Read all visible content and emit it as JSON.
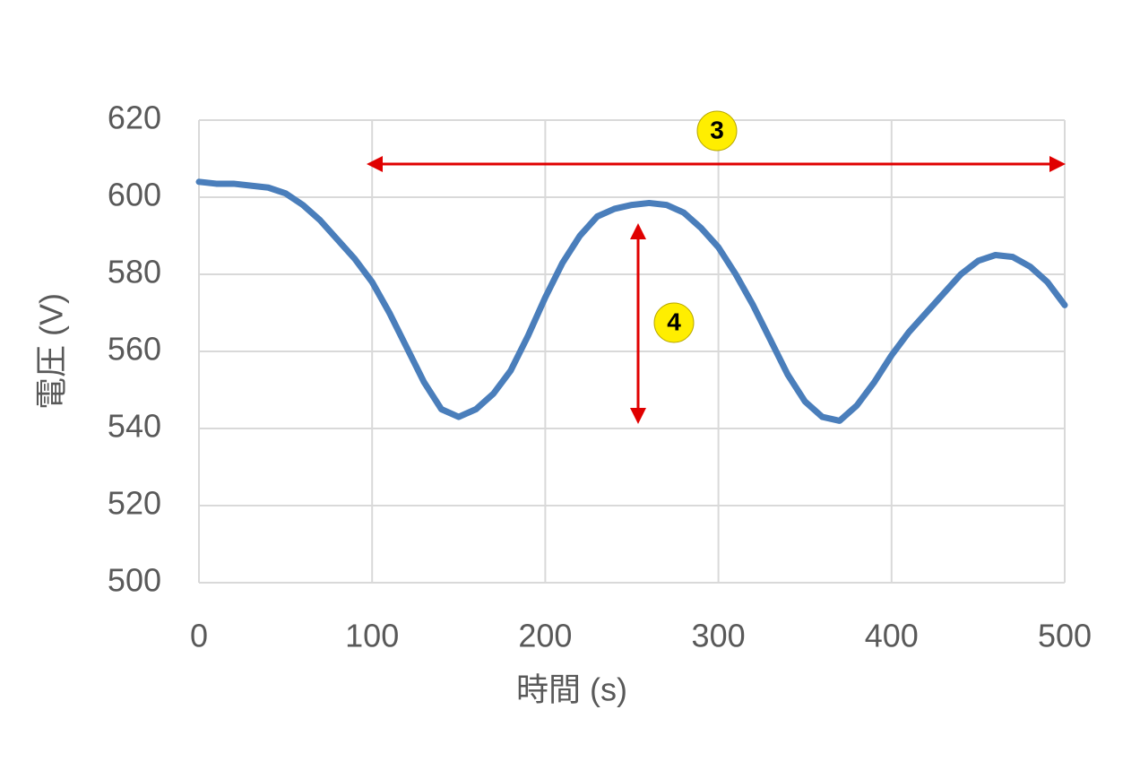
{
  "chart_data": {
    "type": "line",
    "x": [
      0,
      10,
      20,
      30,
      40,
      50,
      60,
      70,
      80,
      90,
      100,
      110,
      120,
      130,
      140,
      150,
      160,
      170,
      180,
      190,
      200,
      210,
      220,
      230,
      240,
      250,
      260,
      270,
      280,
      290,
      300,
      310,
      320,
      330,
      340,
      350,
      360,
      370,
      380,
      390,
      400,
      410,
      420,
      430,
      440,
      450,
      460,
      470,
      480,
      490,
      500
    ],
    "values": [
      604,
      603.5,
      603.5,
      603,
      602.5,
      601,
      598,
      594,
      589,
      584,
      578,
      570,
      561,
      552,
      545,
      543,
      545,
      549,
      555,
      564,
      574,
      583,
      590,
      595,
      597,
      598,
      598.5,
      598,
      596,
      592,
      587,
      580,
      572,
      563,
      554,
      547,
      543,
      542,
      546,
      552,
      559,
      565,
      570,
      575,
      580,
      583.5,
      585,
      584.5,
      582,
      578,
      572
    ],
    "color": "#4a7ebb",
    "xlabel": "時間 (s)",
    "ylabel": "電圧 (V)",
    "xlim": [
      0,
      500
    ],
    "xticks": [
      0,
      100,
      200,
      300,
      400,
      500
    ],
    "ylim": [
      500,
      620
    ],
    "yticks": [
      500,
      520,
      540,
      560,
      580,
      600,
      620
    ],
    "grid": true,
    "annotations": [
      {
        "text": "3"
      },
      {
        "text": "4"
      }
    ]
  }
}
